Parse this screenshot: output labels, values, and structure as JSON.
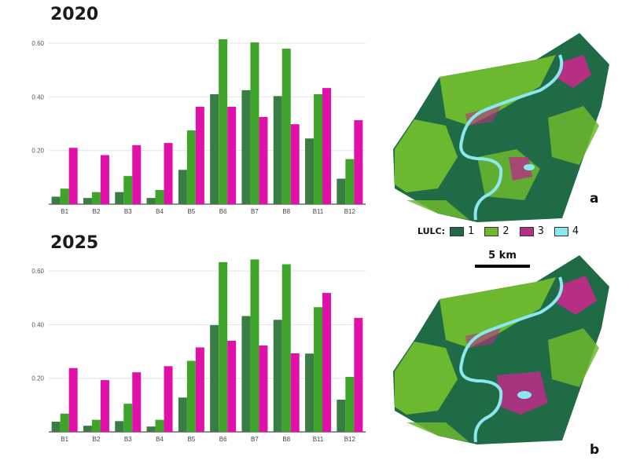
{
  "chart_data": [
    {
      "type": "bar",
      "title": "2020",
      "categories": [
        "B1",
        "B2",
        "B3",
        "B4",
        "B5",
        "B6",
        "B7",
        "B8",
        "B11",
        "B12"
      ],
      "series": [
        {
          "color": "#3a7d44",
          "values": [
            0.028,
            0.023,
            0.045,
            0.023,
            0.128,
            0.41,
            0.425,
            0.403,
            0.245,
            0.095
          ]
        },
        {
          "color": "#3ea52a",
          "values": [
            0.058,
            0.045,
            0.105,
            0.053,
            0.275,
            0.615,
            0.603,
            0.58,
            0.41,
            0.168
          ]
        },
        {
          "color": "#e010a8",
          "values": [
            0.21,
            0.183,
            0.22,
            0.228,
            0.363,
            0.363,
            0.325,
            0.298,
            0.433,
            0.313
          ]
        }
      ],
      "yticks": [
        "0.20",
        "0.40",
        "0.60"
      ],
      "ylim": [
        0,
        0.65
      ],
      "grid": true
    },
    {
      "type": "bar",
      "title": "2025",
      "categories": [
        "B1",
        "B2",
        "B3",
        "B4",
        "B5",
        "B6",
        "B7",
        "B8",
        "B11",
        "B12"
      ],
      "series": [
        {
          "color": "#3a7d44",
          "values": [
            0.038,
            0.023,
            0.04,
            0.02,
            0.128,
            0.398,
            0.432,
            0.418,
            0.292,
            0.12
          ]
        },
        {
          "color": "#3ea52a",
          "values": [
            0.068,
            0.045,
            0.105,
            0.045,
            0.265,
            0.633,
            0.643,
            0.625,
            0.465,
            0.205
          ]
        },
        {
          "color": "#e010a8",
          "values": [
            0.238,
            0.193,
            0.222,
            0.245,
            0.315,
            0.34,
            0.322,
            0.293,
            0.518,
            0.425
          ]
        }
      ],
      "yticks": [
        "0.20",
        "0.40",
        "0.60"
      ],
      "ylim": [
        0,
        0.65
      ],
      "grid": true
    }
  ],
  "maps": [
    {
      "panel_label": "a",
      "year": "2020"
    },
    {
      "panel_label": "b",
      "year": "2025"
    }
  ],
  "legend": {
    "title": "LULC:",
    "items": [
      {
        "label": "1",
        "color": "#1f6b45"
      },
      {
        "label": "2",
        "color": "#6cb82e"
      },
      {
        "label": "3",
        "color": "#b72f85"
      },
      {
        "label": "4",
        "color": "#8ae8f0"
      }
    ]
  },
  "scalebar": {
    "label": "5 km"
  },
  "map_colors": {
    "class1": "#1f6b45",
    "class2": "#6cb82e",
    "class3": "#b72f85",
    "class4": "#8ae8f0"
  }
}
